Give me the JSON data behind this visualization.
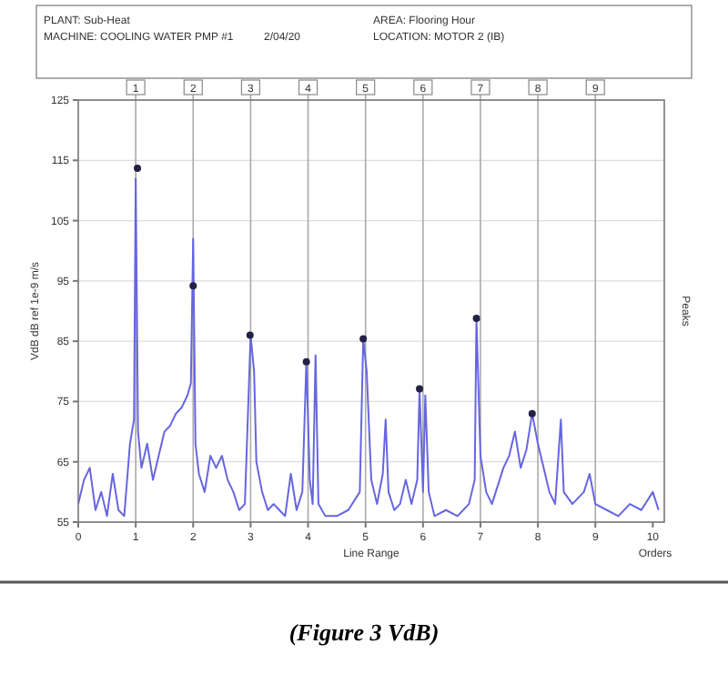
{
  "chart_data": {
    "type": "line",
    "xlabel": "Line Range",
    "ylabel": "VdB dB ref 1e-9 m/s",
    "xlim": [
      0,
      10.2
    ],
    "ylim": [
      55,
      125
    ],
    "xticks": [
      0,
      1,
      2,
      3,
      4,
      5,
      6,
      7,
      8,
      9,
      10
    ],
    "yticks": [
      55,
      65,
      75,
      85,
      95,
      105,
      115,
      125
    ],
    "grid": "y",
    "ref_lines": [
      {
        "axis": "x",
        "value": 1,
        "label": "1"
      },
      {
        "axis": "x",
        "value": 2,
        "label": "2"
      },
      {
        "axis": "x",
        "value": 3,
        "label": "3"
      },
      {
        "axis": "x",
        "value": 4,
        "label": "4"
      },
      {
        "axis": "x",
        "value": 5,
        "label": "5"
      },
      {
        "axis": "x",
        "value": 6,
        "label": "6"
      },
      {
        "axis": "x",
        "value": 7,
        "label": "7"
      },
      {
        "axis": "x",
        "value": 8,
        "label": "8"
      },
      {
        "axis": "x",
        "value": 9,
        "label": "9"
      }
    ],
    "series": [
      {
        "color": "#6666e0",
        "x": [
          0,
          0.1,
          0.2,
          0.3,
          0.4,
          0.5,
          0.6,
          0.7,
          0.8,
          0.9,
          0.97,
          1.0,
          1.04,
          1.1,
          1.2,
          1.3,
          1.4,
          1.5,
          1.6,
          1.7,
          1.8,
          1.9,
          1.96,
          2.0,
          2.04,
          2.1,
          2.2,
          2.3,
          2.4,
          2.5,
          2.6,
          2.7,
          2.8,
          2.9,
          3.0,
          3.06,
          3.1,
          3.2,
          3.3,
          3.4,
          3.5,
          3.6,
          3.7,
          3.8,
          3.9,
          3.97,
          4.03,
          4.08,
          4.13,
          4.18,
          4.3,
          4.5,
          4.7,
          4.9,
          4.96,
          5.02,
          5.1,
          5.2,
          5.3,
          5.35,
          5.4,
          5.5,
          5.6,
          5.7,
          5.8,
          5.9,
          5.94,
          6.0,
          6.04,
          6.1,
          6.2,
          6.4,
          6.6,
          6.8,
          6.9,
          6.93,
          7.0,
          7.1,
          7.2,
          7.4,
          7.5,
          7.6,
          7.7,
          7.8,
          7.9,
          8.0,
          8.1,
          8.2,
          8.3,
          8.4,
          8.45,
          8.6,
          8.8,
          8.9,
          9.0,
          9.2,
          9.4,
          9.6,
          9.8,
          10.0,
          10.1
        ],
        "values": [
          58,
          62,
          64,
          57,
          60,
          56,
          63,
          57,
          56,
          68,
          72,
          112,
          70,
          64,
          68,
          62,
          66,
          70,
          71,
          73,
          74,
          76,
          78,
          102,
          68,
          63,
          60,
          66,
          64,
          66,
          62,
          60,
          57,
          58,
          86,
          80,
          65,
          60,
          57,
          58,
          57,
          56,
          63,
          57,
          60,
          81.6,
          62,
          58,
          82.7,
          58,
          56,
          56,
          57,
          60,
          85.4,
          80,
          62,
          58,
          63,
          72,
          60,
          57,
          58,
          62,
          58,
          62,
          77,
          60,
          76,
          60,
          56,
          57,
          56,
          58,
          62,
          88.8,
          66,
          60,
          58,
          64,
          66,
          70,
          64,
          67,
          73,
          68,
          64,
          60,
          58,
          72,
          60,
          58,
          60,
          63,
          58,
          57,
          56,
          58,
          57,
          60,
          57
        ]
      },
      {
        "type": "scatter",
        "color": "#222244",
        "marker": "circle",
        "x": [
          1.03,
          2.0,
          2.99,
          3.97,
          4.96,
          5.94,
          6.93,
          7.9
        ],
        "values": [
          113.7,
          94.2,
          86,
          81.6,
          85.4,
          77.1,
          88.8,
          73
        ]
      }
    ],
    "annotations": [
      "PLANT: Sub-Heat",
      "MACHINE: COOLING WATER PMP #1",
      "2/04/20",
      "AREA: Flooring Hour",
      "LOCATION: MOTOR 2 (IB)",
      "Peaks",
      "Orders",
      "(Figure 3 VdB)"
    ]
  }
}
